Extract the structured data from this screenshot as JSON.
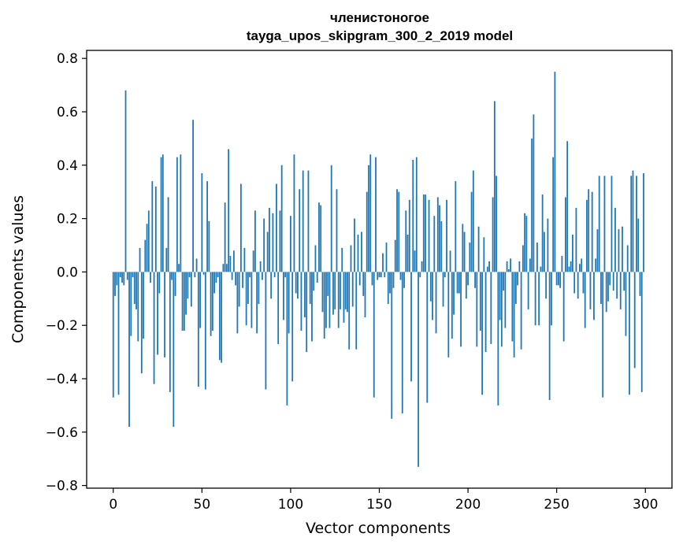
{
  "chart_data": {
    "type": "bar",
    "title": "членистоногое",
    "subtitle": "tayga_upos_skipgram_300_2_2019 model",
    "xlabel": "Vector components",
    "ylabel": "Components values",
    "xlim": [
      -15,
      315
    ],
    "ylim": [
      -0.81,
      0.83
    ],
    "xticks": [
      0,
      50,
      100,
      150,
      200,
      250,
      300
    ],
    "yticks": [
      -0.8,
      -0.6,
      -0.4,
      -0.2,
      0.0,
      0.2,
      0.4,
      0.6,
      0.8
    ],
    "ytick_labels": [
      "−0.8",
      "−0.6",
      "−0.4",
      "−0.2",
      "0.0",
      "0.2",
      "0.4",
      "0.6",
      "0.8"
    ],
    "grid": false,
    "bar_color": "#1f77b4",
    "values": [
      -0.47,
      -0.09,
      -0.05,
      -0.46,
      -0.02,
      -0.04,
      -0.05,
      0.68,
      -0.03,
      -0.58,
      -0.24,
      -0.02,
      -0.12,
      -0.14,
      -0.26,
      0.09,
      -0.38,
      -0.25,
      0.12,
      0.18,
      0.23,
      -0.04,
      0.34,
      -0.42,
      0.32,
      -0.31,
      -0.08,
      0.43,
      0.44,
      -0.32,
      0.09,
      0.28,
      -0.45,
      -0.03,
      -0.58,
      -0.09,
      0.43,
      0.03,
      0.44,
      -0.22,
      -0.22,
      -0.16,
      -0.1,
      -0.02,
      -0.13,
      0.57,
      -0.02,
      0.05,
      -0.43,
      -0.21,
      0.37,
      -0.01,
      -0.44,
      0.34,
      0.19,
      -0.24,
      -0.22,
      -0.08,
      -0.04,
      -0.02,
      -0.33,
      -0.34,
      0.03,
      0.26,
      0.03,
      0.46,
      0.06,
      -0.03,
      0.08,
      -0.05,
      -0.23,
      -0.13,
      0.33,
      -0.06,
      0.09,
      -0.2,
      -0.12,
      -0.02,
      -0.21,
      0.08,
      0.23,
      -0.23,
      -0.12,
      0.04,
      -0.03,
      0.2,
      -0.44,
      0.15,
      0.24,
      -0.1,
      0.22,
      -0.02,
      0.33,
      -0.27,
      0.23,
      0.4,
      -0.18,
      -0.02,
      -0.5,
      -0.23,
      0.21,
      -0.41,
      0.44,
      -0.08,
      -0.1,
      0.31,
      -0.22,
      0.38,
      -0.17,
      -0.3,
      0.38,
      -0.12,
      -0.26,
      -0.07,
      0.1,
      -0.04,
      0.26,
      0.25,
      -0.15,
      -0.25,
      -0.21,
      -0.09,
      -0.21,
      0.4,
      -0.16,
      -0.14,
      0.31,
      -0.21,
      -0.14,
      0.09,
      -0.19,
      -0.14,
      -0.15,
      -0.29,
      0.1,
      -0.13,
      0.2,
      -0.29,
      0.14,
      -0.05,
      0.15,
      -0.09,
      -0.17,
      0.3,
      0.4,
      0.44,
      -0.05,
      -0.47,
      0.43,
      -0.03,
      -0.02,
      -0.02,
      0.07,
      -0.02,
      0.11,
      -0.12,
      -0.08,
      -0.55,
      -0.06,
      0.12,
      0.31,
      0.3,
      -0.03,
      -0.53,
      -0.06,
      0.23,
      0.14,
      0.27,
      -0.41,
      0.42,
      0.08,
      0.43,
      -0.73,
      -0.02,
      0.04,
      0.29,
      0.29,
      -0.49,
      0.27,
      -0.11,
      -0.18,
      0.21,
      -0.23,
      0.28,
      0.25,
      0.19,
      -0.13,
      -0.02,
      0.27,
      -0.32,
      0.08,
      -0.25,
      -0.16,
      0.34,
      -0.08,
      -0.08,
      -0.28,
      0.18,
      0.15,
      -0.1,
      -0.05,
      0.11,
      0.3,
      0.38,
      -0.06,
      -0.28,
      0.17,
      -0.22,
      -0.46,
      0.13,
      -0.3,
      0.02,
      0.04,
      -0.27,
      0.28,
      0.64,
      0.36,
      -0.5,
      -0.18,
      -0.28,
      -0.07,
      -0.21,
      0.04,
      0.01,
      0.05,
      -0.26,
      -0.32,
      -0.12,
      -0.05,
      0.04,
      -0.29,
      0.1,
      0.22,
      0.21,
      -0.14,
      0.05,
      0.5,
      0.59,
      -0.2,
      0.11,
      -0.2,
      0.02,
      0.29,
      0.15,
      -0.1,
      0.2,
      -0.48,
      -0.2,
      0.43,
      0.75,
      -0.05,
      -0.05,
      -0.06,
      0.06,
      -0.26,
      0.28,
      0.49,
      0.02,
      0.04,
      0.14,
      -0.08,
      0.24,
      -0.1,
      0.03,
      0.05,
      -0.08,
      -0.21,
      0.27,
      0.31,
      -0.14,
      0.3,
      -0.18,
      0.05,
      0.16,
      0.36,
      -0.12,
      -0.47,
      0.36,
      -0.15,
      -0.11,
      -0.05,
      0.36,
      -0.07,
      0.24,
      -0.1,
      0.16,
      -0.14,
      0.17,
      -0.07,
      -0.24,
      0.1,
      -0.46,
      0.36,
      0.38,
      -0.36,
      0.36,
      0.2,
      -0.09,
      -0.45,
      0.37
    ]
  }
}
